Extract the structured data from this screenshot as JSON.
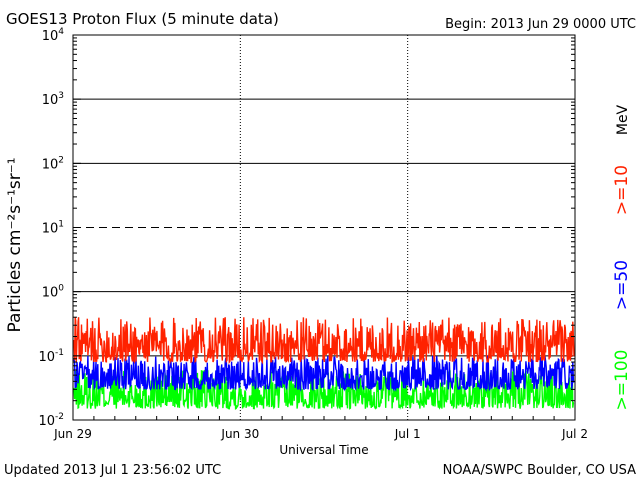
{
  "header": {
    "title": "GOES13 Proton Flux (5 minute data)",
    "begin": "Begin: 2013 Jun 29 0000 UTC"
  },
  "footer": {
    "updated": "Updated 2013 Jul  1 23:56:02 UTC",
    "credit": "NOAA/SWPC Boulder, CO USA"
  },
  "chart_data": {
    "type": "line",
    "xlabel": "Universal Time",
    "ylabel": "Particles cm⁻²s⁻¹sr⁻¹",
    "yscale": "log",
    "ylim": [
      0.01,
      10000
    ],
    "xlim": [
      "2013-06-29",
      "2013-07-02"
    ],
    "x_tick_labels": [
      "Jun 29",
      "Jun 30",
      "Jul 1",
      "Jul 2"
    ],
    "y_tick_exponents": [
      "-2",
      "-1",
      "0",
      "1",
      "2",
      "3",
      "4"
    ],
    "y_tick_base": "10",
    "threshold_line_at": 10,
    "grid": true,
    "legend_placement": "right",
    "legend_unit": "MeV",
    "series": [
      {
        "name": ">=10",
        "color": "#ff2200",
        "typical_range": [
          0.08,
          0.4
        ]
      },
      {
        "name": ">=50",
        "color": "#0000ff",
        "typical_range": [
          0.03,
          0.1
        ]
      },
      {
        "name": ">=100",
        "color": "#00ff00",
        "typical_range": [
          0.015,
          0.06
        ]
      }
    ]
  }
}
